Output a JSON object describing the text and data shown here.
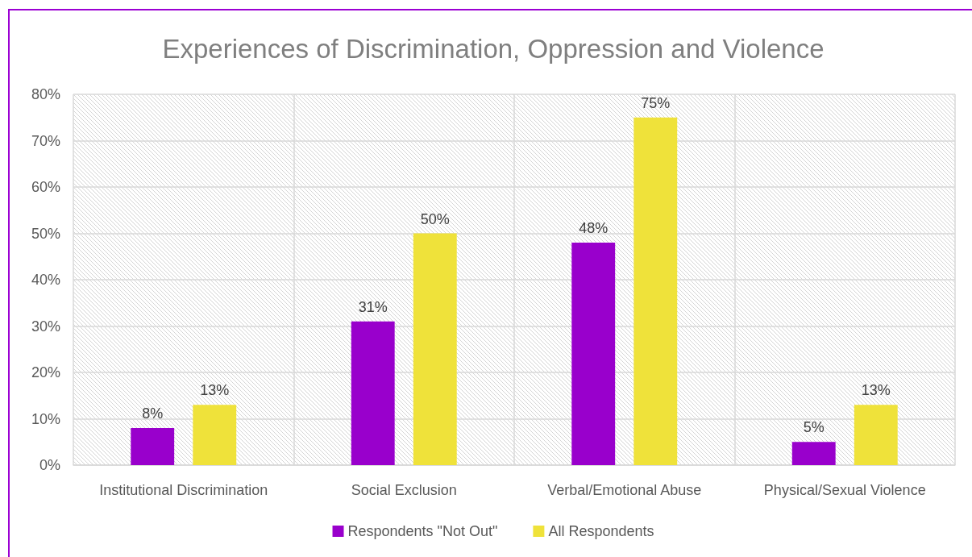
{
  "chart_data": {
    "type": "bar",
    "title": "Experiences of Discrimination, Oppression and Violence",
    "categories": [
      "Institutional Discrimination",
      "Social Exclusion",
      "Verbal/Emotional Abuse",
      "Physical/Sexual Violence"
    ],
    "series": [
      {
        "name": "Respondents \"Not Out\"",
        "color": "#9900cc",
        "values": [
          8,
          31,
          48,
          5
        ],
        "value_labels": [
          "8%",
          "31%",
          "48%",
          "5%"
        ]
      },
      {
        "name": "All Respondents",
        "color": "#efe23a",
        "values": [
          13,
          50,
          75,
          13
        ],
        "value_labels": [
          "13%",
          "50%",
          "75%",
          "13%"
        ]
      }
    ],
    "ylim": [
      0,
      80
    ],
    "yticks": [
      {
        "value": 0,
        "label": "0%"
      },
      {
        "value": 10,
        "label": "10%"
      },
      {
        "value": 20,
        "label": "20%"
      },
      {
        "value": 30,
        "label": "30%"
      },
      {
        "value": 40,
        "label": "40%"
      },
      {
        "value": 50,
        "label": "50%"
      },
      {
        "value": 60,
        "label": "60%"
      },
      {
        "value": 70,
        "label": "70%"
      },
      {
        "value": 80,
        "label": "80%"
      }
    ],
    "grid": true,
    "legend": "bottom"
  }
}
